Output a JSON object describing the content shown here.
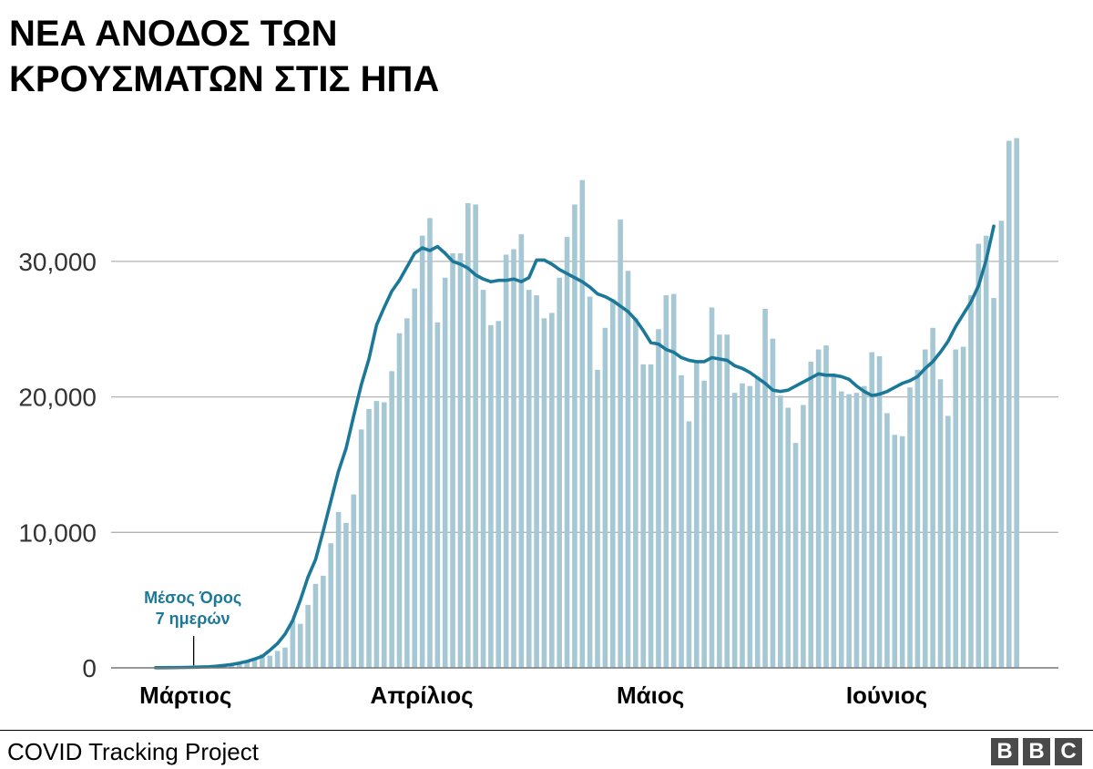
{
  "title_line1": "ΝΕΑ ΑΝΟΔΟΣ ΤΩΝ",
  "title_line2": "ΚΡΟΥΣΜΑΤΩΝ ΣΤΙΣ ΗΠΑ",
  "source": "COVID Tracking Project",
  "logo": [
    "B",
    "B",
    "C"
  ],
  "colors": {
    "bar": "#a6c8d4",
    "line": "#1b7898",
    "grid": "#b3b3b3",
    "annotation": "#1b7898"
  },
  "chart_data": {
    "type": "bar",
    "ylim": [
      0,
      40000
    ],
    "yticks": [
      0,
      10000,
      20000,
      30000
    ],
    "ytick_labels": [
      "0",
      "10,000",
      "20,000",
      "30,000"
    ],
    "month_labels": [
      {
        "label": "Μάρτιος",
        "day": 0
      },
      {
        "label": "Απρίλιος",
        "day": 31
      },
      {
        "label": "Μάιος",
        "day": 61
      },
      {
        "label": "Ιούνιος",
        "day": 92
      }
    ],
    "annotation": {
      "line1": "Μέσος Όρος",
      "line2": "7 ημερών",
      "day": 5
    },
    "series": [
      {
        "type": "bar",
        "values": [
          5,
          9,
          15,
          22,
          30,
          40,
          55,
          70,
          100,
          150,
          240,
          350,
          530,
          750,
          1000,
          900,
          1250,
          1500,
          3500,
          3250,
          4650,
          6200,
          6800,
          9200,
          11500,
          10700,
          12800,
          17600,
          19100,
          19700,
          19600,
          21900,
          24700,
          25800,
          28000,
          31900,
          33200,
          25500,
          28800,
          30600,
          30600,
          34300,
          34200,
          27900,
          25300,
          25600,
          30500,
          30900,
          32000,
          27900,
          27500,
          25800,
          26200,
          28800,
          31800,
          34200,
          36000,
          27400,
          22000,
          25100,
          27200,
          33100,
          29300,
          25800,
          22400,
          22400,
          25000,
          27500,
          27600,
          21600,
          18200,
          22600,
          21200,
          26600,
          24600,
          24600,
          20300,
          21000,
          20800,
          21500,
          26500,
          24300,
          20100,
          19200,
          16600,
          19400,
          22600,
          23500,
          23800,
          21600,
          20400,
          20200,
          20300,
          20800,
          23300,
          23000,
          18800,
          17200,
          17100,
          20700,
          22000,
          23500,
          25100,
          21300,
          18600,
          23500,
          23700,
          27500,
          31300,
          31900,
          27300,
          33000,
          38900,
          39100
        ]
      },
      {
        "type": "line",
        "name": "Μέσος Όρος 7 ημερών",
        "values": [
          10,
          14,
          19,
          25,
          34,
          45,
          60,
          80,
          120,
          180,
          250,
          350,
          480,
          650,
          850,
          1300,
          1800,
          2500,
          3500,
          5000,
          6700,
          8000,
          10100,
          12300,
          14500,
          16200,
          18600,
          20900,
          22800,
          25300,
          26600,
          27800,
          28600,
          29600,
          30600,
          31000,
          30800,
          31100,
          30600,
          30000,
          29800,
          29500,
          29000,
          28700,
          28500,
          28600,
          28600,
          28700,
          28500,
          28800,
          30100,
          30100,
          29800,
          29400,
          29100,
          28800,
          28500,
          28100,
          27600,
          27400,
          27100,
          26700,
          26300,
          25700,
          24900,
          24000,
          23900,
          23500,
          23300,
          22900,
          22700,
          22600,
          22600,
          22900,
          22800,
          22700,
          22300,
          22100,
          21800,
          21400,
          21000,
          20500,
          20400,
          20500,
          20800,
          21100,
          21400,
          21700,
          21600,
          21600,
          21500,
          21300,
          20800,
          20400,
          20100,
          20200,
          20400,
          20700,
          21000,
          21200,
          21500,
          22100,
          22600,
          23300,
          24100,
          25200,
          26100,
          27000,
          28200,
          30100,
          32600
        ]
      }
    ]
  }
}
